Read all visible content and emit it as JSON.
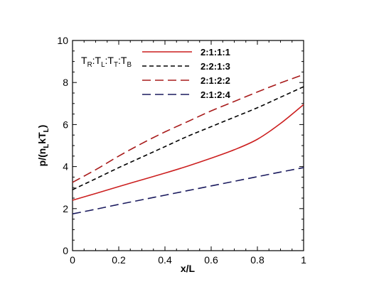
{
  "chart_data": {
    "type": "line",
    "xlabel": "x/L",
    "ylabel_parts": [
      {
        "t": "p/(n",
        "sub": false
      },
      {
        "t": "L",
        "sub": true
      },
      {
        "t": "kT",
        "sub": false
      },
      {
        "t": "L",
        "sub": true
      },
      {
        "t": ")",
        "sub": false
      }
    ],
    "xlim": [
      0,
      1
    ],
    "ylim": [
      0,
      10
    ],
    "xticks": [
      0,
      0.2,
      0.4,
      0.6,
      0.8,
      1
    ],
    "xtick_labels": [
      "0",
      "0.2",
      "0.4",
      "0.6",
      "0.8",
      "1"
    ],
    "yticks": [
      0,
      2,
      4,
      6,
      8,
      10
    ],
    "ytick_labels": [
      "0",
      "2",
      "4",
      "6",
      "8",
      "10"
    ],
    "grid": false,
    "legend": {
      "placement": "top-left",
      "title_parts": [
        {
          "t": "T",
          "sub": false
        },
        {
          "t": "R",
          "sub": true
        },
        {
          "t": ":T",
          "sub": false
        },
        {
          "t": "L",
          "sub": true
        },
        {
          "t": ":T",
          "sub": false
        },
        {
          "t": "T",
          "sub": true
        },
        {
          "t": ":T",
          "sub": false
        },
        {
          "t": "B",
          "sub": true
        }
      ]
    },
    "series": [
      {
        "name": "2:1:1:1",
        "color": "#cc1f1f",
        "style": "solid",
        "x": [
          0,
          0.1,
          0.2,
          0.3,
          0.4,
          0.5,
          0.6,
          0.7,
          0.8,
          0.9,
          1.0
        ],
        "y": [
          2.4,
          2.72,
          3.05,
          3.37,
          3.69,
          4.03,
          4.4,
          4.8,
          5.3,
          6.05,
          6.95
        ]
      },
      {
        "name": "2:2:1:3",
        "color": "#000000",
        "style": "dash-short",
        "x": [
          0,
          0.1,
          0.2,
          0.3,
          0.4,
          0.5,
          0.6,
          0.7,
          0.8,
          0.9,
          1.0
        ],
        "y": [
          2.9,
          3.42,
          3.95,
          4.45,
          4.95,
          5.45,
          5.9,
          6.35,
          6.8,
          7.3,
          7.8
        ]
      },
      {
        "name": "2:1:2:2",
        "color": "#a81b1b",
        "style": "dash-long",
        "x": [
          0,
          0.1,
          0.2,
          0.3,
          0.4,
          0.5,
          0.6,
          0.7,
          0.8,
          0.9,
          1.0
        ],
        "y": [
          3.25,
          3.85,
          4.5,
          5.1,
          5.65,
          6.15,
          6.65,
          7.1,
          7.55,
          7.98,
          8.38
        ]
      },
      {
        "name": "2:1:2:4",
        "color": "#1a1a5e",
        "style": "dash-long",
        "x": [
          0,
          0.1,
          0.2,
          0.3,
          0.4,
          0.5,
          0.6,
          0.7,
          0.8,
          0.9,
          1.0
        ],
        "y": [
          1.75,
          1.97,
          2.2,
          2.42,
          2.64,
          2.86,
          3.08,
          3.3,
          3.52,
          3.74,
          3.95
        ]
      }
    ]
  }
}
